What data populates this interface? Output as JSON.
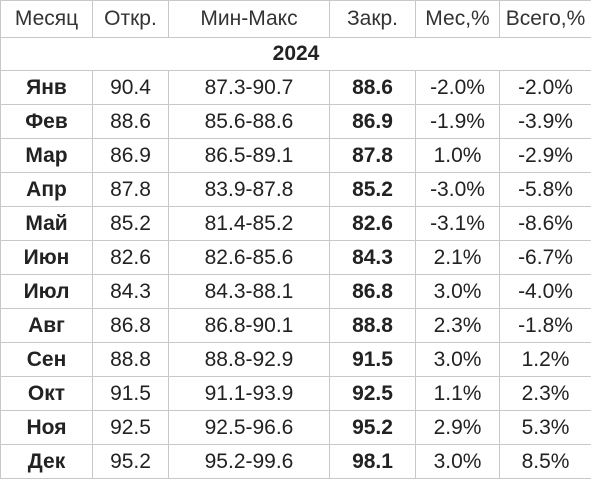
{
  "table": {
    "headers": [
      "Месяц",
      "Откр.",
      "Мин-Макс",
      "Закр.",
      "Мес,%",
      "Всего,%"
    ],
    "year": "2024",
    "rows": [
      [
        "Янв",
        "90.4",
        "87.3-90.7",
        "88.6",
        "-2.0%",
        "-2.0%"
      ],
      [
        "Фев",
        "88.6",
        "85.6-88.6",
        "86.9",
        "-1.9%",
        "-3.9%"
      ],
      [
        "Мар",
        "86.9",
        "86.5-89.1",
        "87.8",
        "1.0%",
        "-2.9%"
      ],
      [
        "Апр",
        "87.8",
        "83.9-87.8",
        "85.2",
        "-3.0%",
        "-5.8%"
      ],
      [
        "Май",
        "85.2",
        "81.4-85.2",
        "82.6",
        "-3.1%",
        "-8.6%"
      ],
      [
        "Июн",
        "82.6",
        "82.6-85.6",
        "84.3",
        "2.1%",
        "-6.7%"
      ],
      [
        "Июл",
        "84.3",
        "84.3-88.1",
        "86.8",
        "3.0%",
        "-4.0%"
      ],
      [
        "Авг",
        "86.8",
        "86.8-90.1",
        "88.8",
        "2.3%",
        "-1.8%"
      ],
      [
        "Сен",
        "88.8",
        "88.8-92.9",
        "91.5",
        "3.0%",
        "1.2%"
      ],
      [
        "Окт",
        "91.5",
        "91.1-93.9",
        "92.5",
        "1.1%",
        "2.3%"
      ],
      [
        "Ноя",
        "92.5",
        "92.5-96.6",
        "95.2",
        "2.9%",
        "5.3%"
      ],
      [
        "Дек",
        "95.2",
        "95.2-99.6",
        "98.1",
        "3.0%",
        "8.5%"
      ]
    ]
  }
}
